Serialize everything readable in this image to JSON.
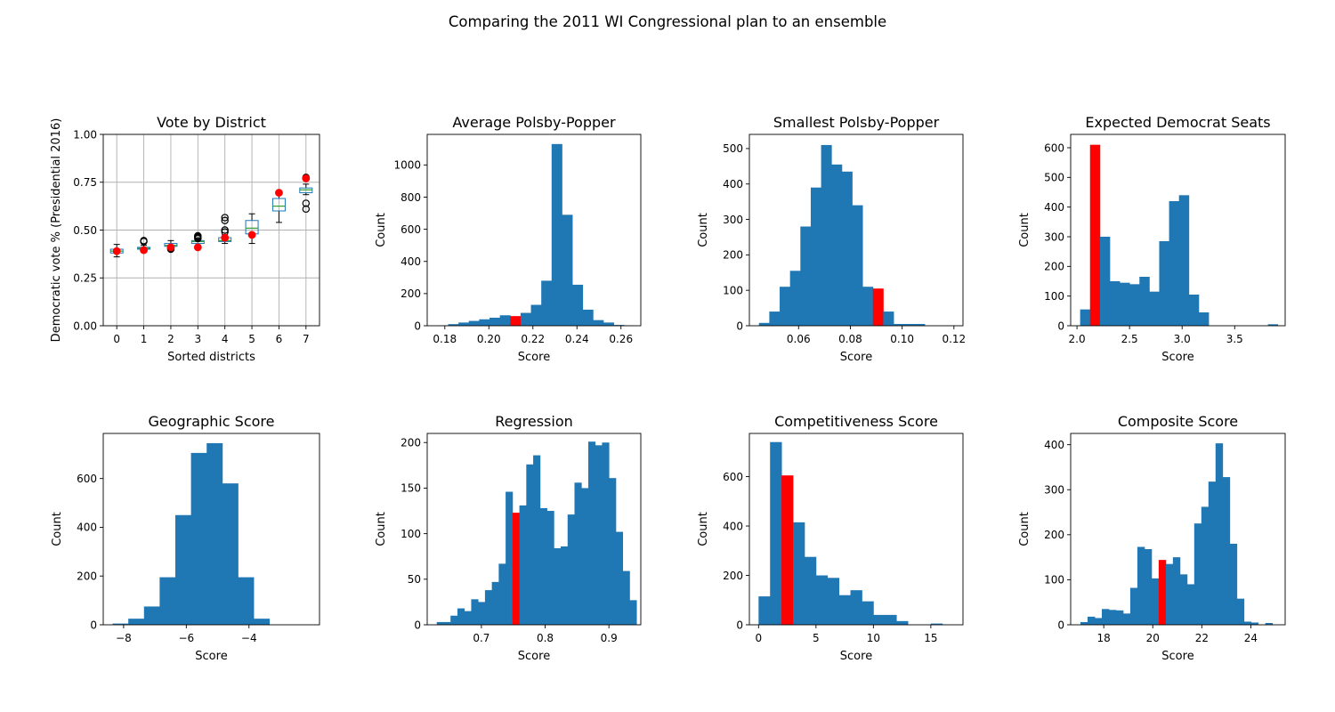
{
  "suptitle": "Comparing the 2011 WI Congressional plan to an ensemble",
  "colors": {
    "ensemble": "#1f77b4",
    "plan": "#ff0000",
    "median": "#2ca02c"
  },
  "chart_data": [
    {
      "type": "box",
      "title": "Vote by District",
      "xlabel": "Sorted districts",
      "ylabel": "Democratic vote % (Presidential 2016)",
      "ylim": [
        0,
        1
      ],
      "yticks": [
        "0.00",
        "0.25",
        "0.50",
        "0.75",
        "1.00"
      ],
      "grid": true,
      "categories": [
        "0",
        "1",
        "2",
        "3",
        "4",
        "5",
        "6",
        "7"
      ],
      "boxes": [
        {
          "whislo": 0.36,
          "q1": 0.38,
          "med": 0.39,
          "q3": 0.4,
          "whishi": 0.425,
          "fliers": []
        },
        {
          "whislo": 0.395,
          "q1": 0.4,
          "med": 0.405,
          "q3": 0.41,
          "whishi": 0.42,
          "fliers": [
            0.44,
            0.445
          ]
        },
        {
          "whislo": 0.405,
          "q1": 0.415,
          "med": 0.42,
          "q3": 0.43,
          "whishi": 0.445,
          "fliers": [
            0.4,
            0.405
          ]
        },
        {
          "whislo": 0.415,
          "q1": 0.43,
          "med": 0.44,
          "q3": 0.445,
          "whishi": 0.46,
          "fliers": [
            0.455,
            0.46,
            0.465,
            0.47
          ]
        },
        {
          "whislo": 0.43,
          "q1": 0.44,
          "med": 0.445,
          "q3": 0.46,
          "whishi": 0.475,
          "fliers": [
            0.49,
            0.5,
            0.55,
            0.565
          ]
        },
        {
          "whislo": 0.43,
          "q1": 0.48,
          "med": 0.51,
          "q3": 0.55,
          "whishi": 0.585,
          "fliers": []
        },
        {
          "whislo": 0.54,
          "q1": 0.6,
          "med": 0.625,
          "q3": 0.665,
          "whishi": 0.7,
          "fliers": []
        },
        {
          "whislo": 0.685,
          "q1": 0.695,
          "med": 0.71,
          "q3": 0.72,
          "whishi": 0.74,
          "fliers": [
            0.61,
            0.64,
            0.77,
            0.775
          ]
        }
      ],
      "plan_values": [
        0.39,
        0.395,
        0.41,
        0.41,
        0.46,
        0.475,
        0.695,
        0.77
      ]
    },
    {
      "type": "histogram",
      "title": "Average Polsby-Popper",
      "xlabel": "Score",
      "ylabel": "Count",
      "xlim": [
        0.172,
        0.269
      ],
      "ylim": [
        0,
        1190
      ],
      "xticks": [
        0.18,
        0.2,
        0.22,
        0.24,
        0.26
      ],
      "xtick_labels": [
        "0.18",
        "0.20",
        "0.22",
        "0.24",
        "0.26"
      ],
      "yticks": [
        0,
        200,
        400,
        600,
        800,
        1000
      ],
      "ytick_labels": [
        "0",
        "200",
        "400",
        "600",
        "800",
        "1000"
      ],
      "bins": [
        0.1768,
        0.1815,
        0.1862,
        0.1909,
        0.1956,
        0.2003,
        0.205,
        0.2097,
        0.2144,
        0.2191,
        0.2238,
        0.2285,
        0.2332,
        0.2379,
        0.2426,
        0.2473,
        0.252,
        0.2567,
        0.2614,
        0.2661
      ],
      "counts": [
        2,
        10,
        20,
        30,
        40,
        50,
        65,
        60,
        80,
        130,
        280,
        1130,
        690,
        255,
        100,
        35,
        20,
        5,
        2
      ],
      "plan_bar": 7
    },
    {
      "type": "histogram",
      "title": "Smallest Polsby-Popper",
      "xlabel": "Score",
      "ylabel": "Count",
      "xlim": [
        0.041,
        0.1235
      ],
      "ylim": [
        0,
        540
      ],
      "xticks": [
        0.06,
        0.08,
        0.1,
        0.12
      ],
      "xtick_labels": [
        "0.06",
        "0.08",
        "0.10",
        "0.12"
      ],
      "yticks": [
        0,
        100,
        200,
        300,
        400,
        500
      ],
      "ytick_labels": [
        "0",
        "100",
        "200",
        "300",
        "400",
        "500"
      ],
      "bins": [
        0.0447,
        0.0487,
        0.0527,
        0.0567,
        0.0607,
        0.0647,
        0.0687,
        0.0727,
        0.0767,
        0.0807,
        0.0847,
        0.0887,
        0.0927,
        0.0967,
        0.1007,
        0.1047,
        0.1087,
        0.1127,
        0.1167,
        0.1207
      ],
      "counts": [
        8,
        40,
        110,
        155,
        280,
        390,
        510,
        455,
        435,
        340,
        110,
        105,
        40,
        5,
        5,
        5,
        0,
        0,
        0
      ],
      "plan_bar": 11
    },
    {
      "type": "histogram",
      "title": "Expected Democrat Seats",
      "xlabel": "Score",
      "ylabel": "Count",
      "xlim": [
        1.94,
        3.98
      ],
      "ylim": [
        0,
        645
      ],
      "xticks": [
        2.0,
        2.5,
        3.0,
        3.5
      ],
      "xtick_labels": [
        "2.0",
        "2.5",
        "3.0",
        "3.5"
      ],
      "yticks": [
        0,
        100,
        200,
        300,
        400,
        500,
        600
      ],
      "ytick_labels": [
        "0",
        "100",
        "200",
        "300",
        "400",
        "500",
        "600"
      ],
      "bins": [
        2.03,
        2.124,
        2.218,
        2.312,
        2.406,
        2.5,
        2.594,
        2.688,
        2.782,
        2.876,
        2.97,
        3.064,
        3.158,
        3.252,
        3.346,
        3.44,
        3.534,
        3.628,
        3.722,
        3.816,
        3.91
      ],
      "counts": [
        55,
        610,
        300,
        150,
        145,
        140,
        165,
        115,
        285,
        420,
        440,
        105,
        45,
        0,
        0,
        0,
        0,
        0,
        0,
        5
      ],
      "plan_bar": 1
    },
    {
      "type": "histogram",
      "title": "Geographic Score",
      "xlabel": "Score",
      "ylabel": "Count",
      "xlim": [
        -8.65,
        -1.75
      ],
      "ylim": [
        0,
        785
      ],
      "xticks": [
        -8,
        -6,
        -4
      ],
      "xtick_labels": [
        "−8",
        "−6",
        "−4"
      ],
      "yticks": [
        0,
        200,
        400,
        600
      ],
      "ytick_labels": [
        "0",
        "200",
        "400",
        "600"
      ],
      "bins": [
        -8.35,
        -7.85,
        -7.35,
        -6.85,
        -6.35,
        -5.85,
        -5.35,
        -4.85,
        -4.35,
        -3.85,
        -3.35,
        -2.85,
        -2.35,
        -1.85
      ],
      "counts": [
        5,
        25,
        75,
        195,
        450,
        705,
        745,
        580,
        195,
        25,
        0,
        0,
        0
      ],
      "plan_bar": null
    },
    {
      "type": "histogram",
      "title": "Regression",
      "xlabel": "Score",
      "ylabel": "Count",
      "xlim": [
        0.615,
        0.95
      ],
      "ylim": [
        0,
        210
      ],
      "xticks": [
        0.7,
        0.8,
        0.9
      ],
      "xtick_labels": [
        "0.7",
        "0.8",
        "0.9"
      ],
      "yticks": [
        0,
        50,
        100,
        150,
        200
      ],
      "ytick_labels": [
        "0",
        "50",
        "100",
        "150",
        "200"
      ],
      "bins": [
        0.63,
        0.6408,
        0.6516,
        0.6624,
        0.6732,
        0.684,
        0.6948,
        0.7056,
        0.7164,
        0.7272,
        0.738,
        0.7488,
        0.7596,
        0.7704,
        0.7812,
        0.792,
        0.8028,
        0.8136,
        0.8244,
        0.8352,
        0.846,
        0.8568,
        0.8676,
        0.8784,
        0.8892,
        0.9,
        0.9108,
        0.9216,
        0.9324,
        0.9432
      ],
      "counts": [
        3,
        3,
        10,
        18,
        15,
        28,
        25,
        38,
        47,
        67,
        146,
        123,
        131,
        176,
        186,
        128,
        125,
        84,
        86,
        121,
        156,
        150,
        201,
        197,
        200,
        161,
        102,
        59,
        27,
        2
      ],
      "plan_bar": 11
    },
    {
      "type": "histogram",
      "title": "Competitiveness Score",
      "xlabel": "Score",
      "ylabel": "Count",
      "xlim": [
        -0.8,
        17.8
      ],
      "ylim": [
        0,
        775
      ],
      "xticks": [
        0,
        5,
        10,
        15
      ],
      "xtick_labels": [
        "0",
        "5",
        "10",
        "15"
      ],
      "yticks": [
        0,
        200,
        400,
        600
      ],
      "ytick_labels": [
        "0",
        "200",
        "400",
        "600"
      ],
      "bins": [
        0,
        1,
        2,
        3,
        4,
        5,
        6,
        7,
        8,
        9,
        10,
        11,
        12,
        13,
        14,
        15,
        16,
        17
      ],
      "counts": [
        115,
        740,
        605,
        415,
        275,
        200,
        190,
        120,
        140,
        95,
        40,
        40,
        15,
        0,
        0,
        5,
        0
      ],
      "plan_bar": 2
    },
    {
      "type": "histogram",
      "title": "Composite Score",
      "xlabel": "Score",
      "ylabel": "Count",
      "xlim": [
        16.65,
        25.4
      ],
      "ylim": [
        0,
        425
      ],
      "xticks": [
        18,
        20,
        22,
        24
      ],
      "xtick_labels": [
        "18",
        "20",
        "22",
        "24"
      ],
      "yticks": [
        0,
        100,
        200,
        300,
        400
      ],
      "ytick_labels": [
        "0",
        "100",
        "200",
        "300",
        "400"
      ],
      "bins": [
        17.05,
        17.34,
        17.63,
        17.92,
        18.21,
        18.5,
        18.79,
        19.08,
        19.37,
        19.66,
        19.95,
        20.24,
        20.53,
        20.82,
        21.11,
        21.4,
        21.69,
        21.98,
        22.27,
        22.56,
        22.85,
        23.14,
        23.43,
        23.72,
        24.01,
        24.3,
        24.59,
        24.88
      ],
      "counts": [
        6,
        18,
        15,
        35,
        33,
        32,
        25,
        82,
        173,
        168,
        103,
        144,
        135,
        150,
        112,
        90,
        225,
        262,
        318,
        403,
        328,
        180,
        58,
        7,
        5,
        0,
        4
      ],
      "plan_bar": 11
    }
  ]
}
